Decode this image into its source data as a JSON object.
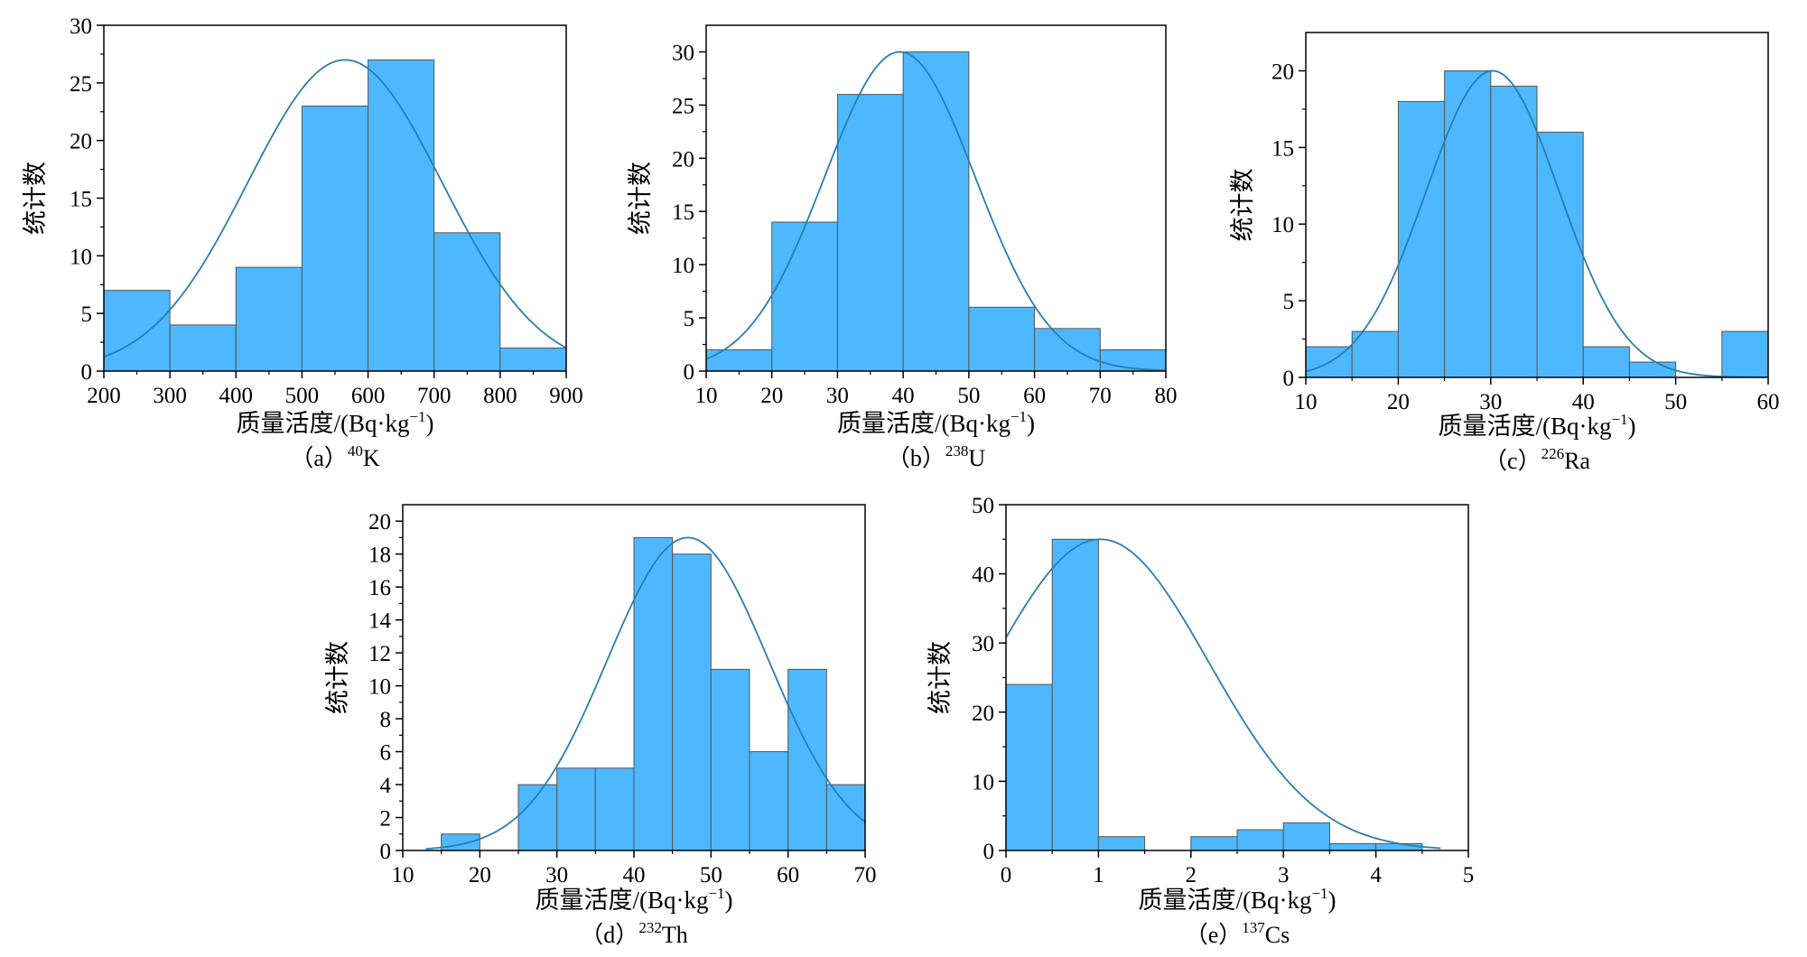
{
  "colors": {
    "bar_fill": "#4db8fd",
    "bar_edge": "#555555",
    "curve": "#2a7db0",
    "axis": "#000000"
  },
  "chart_data": [
    {
      "type": "bar",
      "subtitle_prefix": "（a）",
      "nuclide_mass": "40",
      "nuclide_symbol": "K",
      "xlabel_main": "质量活度/(Bq·kg",
      "xlabel_sup": "−1",
      "xlabel_close": ")",
      "ylabel": "统计数",
      "xlim": [
        200,
        900
      ],
      "ylim": [
        0,
        30
      ],
      "xticks": [
        200,
        300,
        400,
        500,
        600,
        700,
        800,
        900
      ],
      "yticks": [
        0,
        5,
        10,
        15,
        20,
        25,
        30
      ],
      "bins": [
        {
          "x0": 200,
          "x1": 300,
          "count": 7
        },
        {
          "x0": 300,
          "x1": 400,
          "count": 4
        },
        {
          "x0": 400,
          "x1": 500,
          "count": 9
        },
        {
          "x0": 500,
          "x1": 600,
          "count": 23
        },
        {
          "x0": 600,
          "x1": 700,
          "count": 27
        },
        {
          "x0": 700,
          "x1": 800,
          "count": 12
        },
        {
          "x0": 800,
          "x1": 900,
          "count": 2
        }
      ],
      "normal_fit": {
        "mean": 565,
        "sd": 147,
        "peak": 27
      }
    },
    {
      "type": "bar",
      "subtitle_prefix": "（b）",
      "nuclide_mass": "238",
      "nuclide_symbol": "U",
      "xlabel_main": "质量活度/(Bq·kg",
      "xlabel_sup": "−1",
      "xlabel_close": ")",
      "ylabel": "统计数",
      "xlim": [
        10,
        80
      ],
      "ylim": [
        0,
        32.5
      ],
      "xticks": [
        10,
        20,
        30,
        40,
        50,
        60,
        70,
        80
      ],
      "yticks": [
        0,
        5,
        10,
        15,
        20,
        25,
        30
      ],
      "bins": [
        {
          "x0": 10,
          "x1": 20,
          "count": 2
        },
        {
          "x0": 20,
          "x1": 30,
          "count": 14
        },
        {
          "x0": 30,
          "x1": 40,
          "count": 26
        },
        {
          "x0": 40,
          "x1": 50,
          "count": 30
        },
        {
          "x0": 50,
          "x1": 60,
          "count": 6
        },
        {
          "x0": 60,
          "x1": 70,
          "count": 4
        },
        {
          "x0": 70,
          "x1": 80,
          "count": 2
        }
      ],
      "normal_fit": {
        "mean": 39.5,
        "sd": 11.5,
        "peak": 30
      }
    },
    {
      "type": "bar",
      "subtitle_prefix": "（c）",
      "nuclide_mass": "226",
      "nuclide_symbol": "Ra",
      "xlabel_main": "质量活度/(Bq·kg",
      "xlabel_sup": "−1",
      "xlabel_close": ")",
      "ylabel": "统计数",
      "xlim": [
        10,
        60
      ],
      "ylim": [
        0,
        22.5
      ],
      "xticks": [
        10,
        20,
        30,
        40,
        50,
        60
      ],
      "yticks": [
        0,
        5,
        10,
        15,
        20
      ],
      "bins": [
        {
          "x0": 10,
          "x1": 15,
          "count": 2
        },
        {
          "x0": 15,
          "x1": 20,
          "count": 3
        },
        {
          "x0": 20,
          "x1": 25,
          "count": 18
        },
        {
          "x0": 25,
          "x1": 30,
          "count": 20
        },
        {
          "x0": 30,
          "x1": 35,
          "count": 19
        },
        {
          "x0": 35,
          "x1": 40,
          "count": 16
        },
        {
          "x0": 40,
          "x1": 45,
          "count": 2
        },
        {
          "x0": 45,
          "x1": 50,
          "count": 1
        },
        {
          "x0": 50,
          "x1": 55,
          "count": 0
        },
        {
          "x0": 55,
          "x1": 60,
          "count": 3
        }
      ],
      "normal_fit": {
        "mean": 30.2,
        "sd": 7.2,
        "peak": 20
      }
    },
    {
      "type": "bar",
      "subtitle_prefix": "（d）",
      "nuclide_mass": "232",
      "nuclide_symbol": "Th",
      "xlabel_main": "质量活度/(Bq·kg",
      "xlabel_sup": "−1",
      "xlabel_close": ")",
      "ylabel": "统计数",
      "xlim": [
        10,
        70
      ],
      "ylim": [
        0,
        21
      ],
      "xticks": [
        10,
        20,
        30,
        40,
        50,
        60,
        70
      ],
      "yticks": [
        0,
        2,
        4,
        6,
        8,
        10,
        12,
        14,
        16,
        18,
        20
      ],
      "bins": [
        {
          "x0": 10,
          "x1": 15,
          "count": 0
        },
        {
          "x0": 15,
          "x1": 20,
          "count": 1
        },
        {
          "x0": 20,
          "x1": 25,
          "count": 0
        },
        {
          "x0": 25,
          "x1": 30,
          "count": 4
        },
        {
          "x0": 30,
          "x1": 35,
          "count": 5
        },
        {
          "x0": 35,
          "x1": 40,
          "count": 5
        },
        {
          "x0": 40,
          "x1": 45,
          "count": 19
        },
        {
          "x0": 45,
          "x1": 50,
          "count": 18
        },
        {
          "x0": 50,
          "x1": 55,
          "count": 11
        },
        {
          "x0": 55,
          "x1": 60,
          "count": 6
        },
        {
          "x0": 60,
          "x1": 65,
          "count": 11
        },
        {
          "x0": 65,
          "x1": 70,
          "count": 4
        }
      ],
      "normal_fit": {
        "mean": 47,
        "sd": 10.5,
        "peak": 19,
        "x_start": 13
      }
    },
    {
      "type": "bar",
      "subtitle_prefix": "（e）",
      "nuclide_mass": "137",
      "nuclide_symbol": "Cs",
      "xlabel_main": "质量活度/(Bq·kg",
      "xlabel_sup": "−1",
      "xlabel_close": ")",
      "ylabel": "统计数",
      "xlim": [
        0,
        5
      ],
      "ylim": [
        0,
        50
      ],
      "xticks": [
        0,
        1,
        2,
        3,
        4,
        5
      ],
      "yticks": [
        0,
        10,
        20,
        30,
        40,
        50
      ],
      "bins": [
        {
          "x0": 0,
          "x1": 0.5,
          "count": 24
        },
        {
          "x0": 0.5,
          "x1": 1,
          "count": 45
        },
        {
          "x0": 1,
          "x1": 1.5,
          "count": 2
        },
        {
          "x0": 1.5,
          "x1": 2,
          "count": 0
        },
        {
          "x0": 2,
          "x1": 2.5,
          "count": 2
        },
        {
          "x0": 2.5,
          "x1": 3,
          "count": 3
        },
        {
          "x0": 3,
          "x1": 3.5,
          "count": 4
        },
        {
          "x0": 3.5,
          "x1": 4,
          "count": 1
        },
        {
          "x0": 4,
          "x1": 4.5,
          "count": 1
        }
      ],
      "normal_fit": {
        "mean": 1.02,
        "sd": 1.17,
        "peak": 45,
        "x_end": 4.7
      }
    }
  ]
}
